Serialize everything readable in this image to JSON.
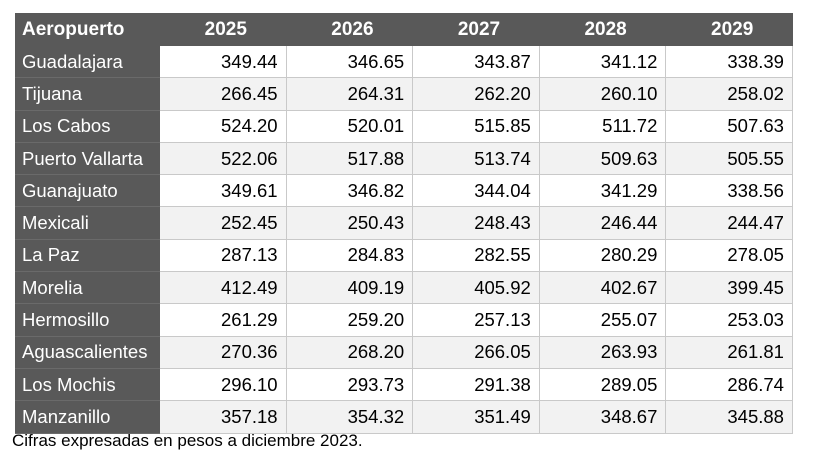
{
  "table": {
    "header": [
      "Aeropuerto",
      "2025",
      "2026",
      "2027",
      "2028",
      "2029"
    ],
    "rows": [
      {
        "airport": "Guadalajara",
        "values": [
          "349.44",
          "346.65",
          "343.87",
          "341.12",
          "338.39"
        ]
      },
      {
        "airport": "Tijuana",
        "values": [
          "266.45",
          "264.31",
          "262.20",
          "260.10",
          "258.02"
        ]
      },
      {
        "airport": "Los Cabos",
        "values": [
          "524.20",
          "520.01",
          "515.85",
          "511.72",
          "507.63"
        ]
      },
      {
        "airport": "Puerto Vallarta",
        "values": [
          "522.06",
          "517.88",
          "513.74",
          "509.63",
          "505.55"
        ]
      },
      {
        "airport": "Guanajuato",
        "values": [
          "349.61",
          "346.82",
          "344.04",
          "341.29",
          "338.56"
        ]
      },
      {
        "airport": "Mexicali",
        "values": [
          "252.45",
          "250.43",
          "248.43",
          "246.44",
          "244.47"
        ]
      },
      {
        "airport": "La Paz",
        "values": [
          "287.13",
          "284.83",
          "282.55",
          "280.29",
          "278.05"
        ]
      },
      {
        "airport": "Morelia",
        "values": [
          "412.49",
          "409.19",
          "405.92",
          "402.67",
          "399.45"
        ]
      },
      {
        "airport": "Hermosillo",
        "values": [
          "261.29",
          "259.20",
          "257.13",
          "255.07",
          "253.03"
        ]
      },
      {
        "airport": "Aguascalientes",
        "values": [
          "270.36",
          "268.20",
          "266.05",
          "263.93",
          "261.81"
        ]
      },
      {
        "airport": "Los Mochis",
        "values": [
          "296.10",
          "293.73",
          "291.38",
          "289.05",
          "286.74"
        ]
      },
      {
        "airport": "Manzanillo",
        "values": [
          "357.18",
          "354.32",
          "351.49",
          "348.67",
          "345.88"
        ]
      }
    ]
  },
  "footnote": "Cifras expresadas en pesos a diciembre 2023.",
  "colors": {
    "header_background": "#595959",
    "header_text": "#ffffff",
    "shaded_row": "#f2f2f2",
    "grid_line": "#c9c9c9"
  }
}
